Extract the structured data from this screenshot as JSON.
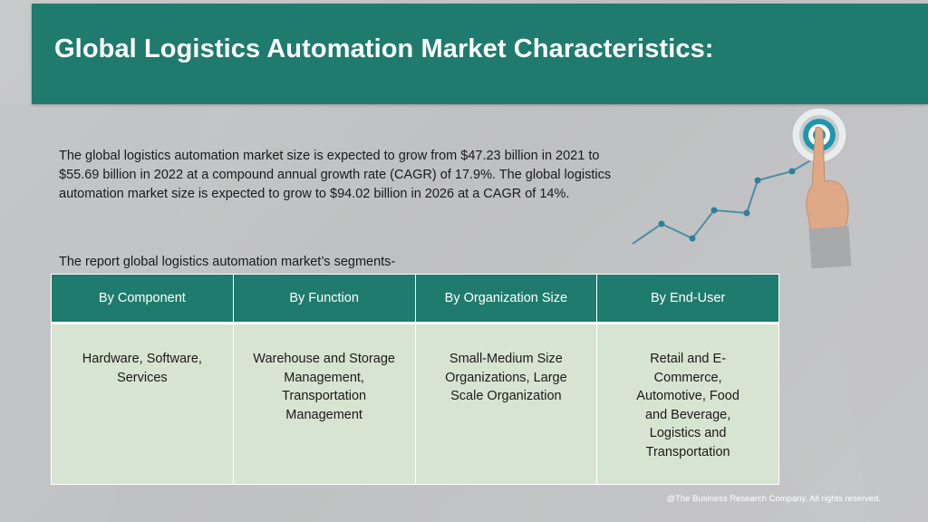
{
  "header": {
    "title": "Global Logistics Automation Market Characteristics:"
  },
  "intro": {
    "text": "The global logistics automation market size is expected to grow from $47.23 billion in 2021 to $55.69 billion in 2022 at a compound annual growth rate (CAGR) of 17.9%. The global logistics automation market size is expected to grow to $94.02 billion in 2026 at a CAGR of 14%."
  },
  "segments": {
    "label": "The report global logistics automation market’s segments-",
    "columns": [
      {
        "header": "By Component",
        "value": "Hardware, Software, Services"
      },
      {
        "header": "By Function",
        "value": "Warehouse and Storage Management, Transportation Management"
      },
      {
        "header": "By Organization Size",
        "value": "Small-Medium Size Organizations, Large Scale Organization"
      },
      {
        "header": "By End-User",
        "value": "Retail and E-Commerce, Automotive, Food and Beverage, Logistics and Transportation"
      }
    ]
  },
  "footer": {
    "text": "@The Business Research Company. All rights reserved."
  },
  "illustration": {
    "icons": [
      "target-icon",
      "pointing-hand-icon",
      "growth-line-icon"
    ]
  },
  "colors": {
    "header_bg": "#1f7b6d",
    "cell_bg": "#d7e4d2",
    "background": "#c6c7c8",
    "accent_line": "#4a8fa6"
  }
}
